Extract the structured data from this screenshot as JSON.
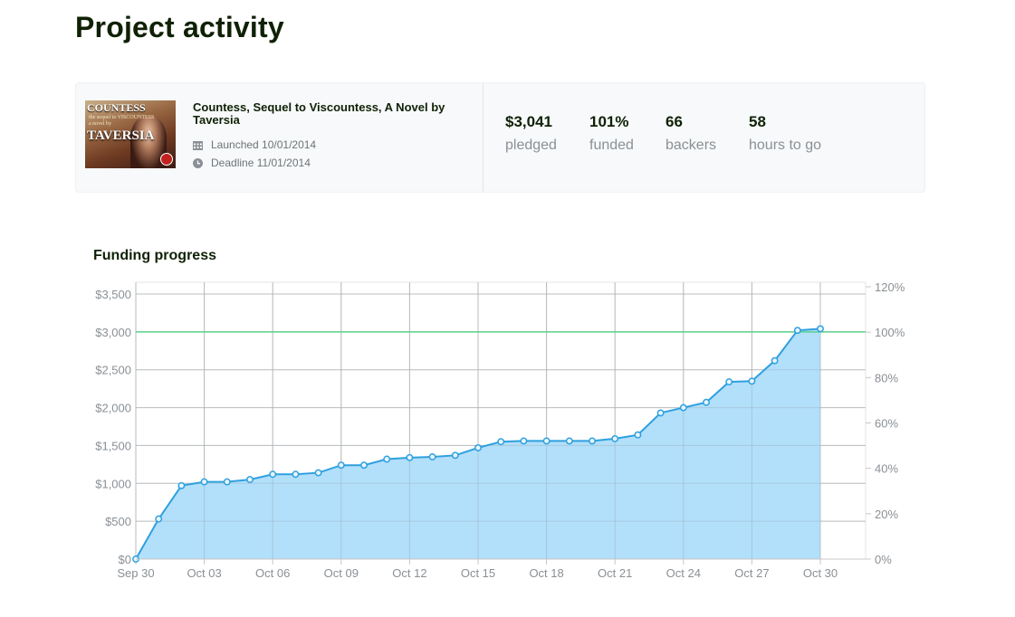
{
  "page": {
    "title": "Project activity"
  },
  "project": {
    "name": "Countess, Sequel to Viscountess, A Novel by Taversia",
    "thumbnail": {
      "title": "COUNTESS",
      "subtitle": "the sequel to VISCOUNTESS",
      "byline": "a novel by",
      "author": "TAVERSIA"
    },
    "launched": "Launched 10/01/2014",
    "deadline": "Deadline 11/01/2014",
    "icons": {
      "launched": "calendar-icon",
      "deadline": "clock-icon"
    }
  },
  "stats": [
    {
      "value": "$3,041",
      "label": "pledged"
    },
    {
      "value": "101%",
      "label": "funded"
    },
    {
      "value": "66",
      "label": "backers"
    },
    {
      "value": "58",
      "label": "hours to go"
    }
  ],
  "chart": {
    "title": "Funding progress"
  },
  "chart_data": {
    "type": "area",
    "title": "Funding progress",
    "x_tick_labels": [
      "Sep 30",
      "Oct 03",
      "Oct 06",
      "Oct 09",
      "Oct 12",
      "Oct 15",
      "Oct 18",
      "Oct 21",
      "Oct 24",
      "Oct 27",
      "Oct 30"
    ],
    "y_left_ticks": [
      "$0",
      "$500",
      "$1,000",
      "$1,500",
      "$2,000",
      "$2,500",
      "$3,000",
      "$3,500"
    ],
    "y_right_ticks": [
      "0%",
      "20%",
      "40%",
      "60%",
      "80%",
      "100%",
      "120%"
    ],
    "ylim_left": [
      0,
      3500
    ],
    "ylim_right": [
      0,
      120
    ],
    "goal_line": 3000,
    "grid": true,
    "x": [
      "Sep 30",
      "Oct 01",
      "Oct 02",
      "Oct 03",
      "Oct 04",
      "Oct 05",
      "Oct 06",
      "Oct 07",
      "Oct 08",
      "Oct 09",
      "Oct 10",
      "Oct 11",
      "Oct 12",
      "Oct 13",
      "Oct 14",
      "Oct 15",
      "Oct 16",
      "Oct 17",
      "Oct 18",
      "Oct 19",
      "Oct 20",
      "Oct 21",
      "Oct 22",
      "Oct 23",
      "Oct 24",
      "Oct 25",
      "Oct 26",
      "Oct 27",
      "Oct 28",
      "Oct 29",
      "Oct 30"
    ],
    "values": [
      0,
      530,
      970,
      1020,
      1020,
      1050,
      1120,
      1120,
      1140,
      1240,
      1240,
      1320,
      1340,
      1350,
      1370,
      1470,
      1550,
      1560,
      1560,
      1560,
      1560,
      1590,
      1640,
      1930,
      2000,
      2070,
      2340,
      2350,
      2620,
      3020,
      3041
    ],
    "colors": {
      "line": "#2fa0de",
      "fill": "#aadcfa",
      "goal": "#5cd08a",
      "marker_fill": "#e8f6ff"
    }
  }
}
